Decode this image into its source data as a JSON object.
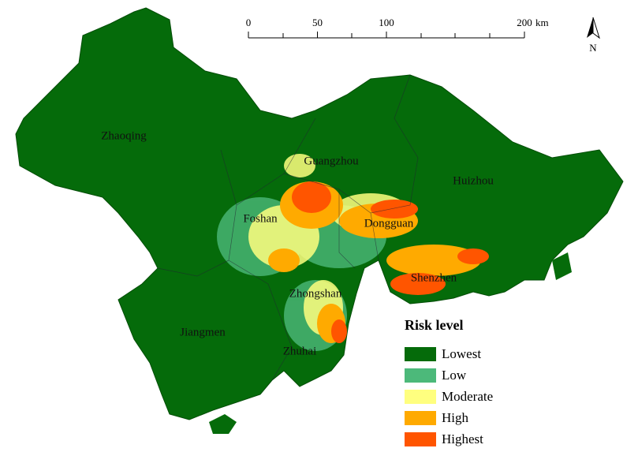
{
  "cities": [
    "Zhaoqing",
    "Guangzhou",
    "Huizhou",
    "Foshan",
    "Dongguan",
    "Shenzhen",
    "Zhongshan",
    "Jiangmen",
    "Zhuhai"
  ],
  "scale_bar": {
    "ticks": [
      0,
      50,
      100,
      200
    ],
    "unit": "km"
  },
  "north_arrow": "N",
  "legend": {
    "title": "Risk level",
    "items": [
      {
        "label": "Lowest",
        "color": "#056b0a"
      },
      {
        "label": "Low",
        "color": "#4cb97a"
      },
      {
        "label": "Moderate",
        "color": "#ffff7f"
      },
      {
        "label": "High",
        "color": "#ffaa00"
      },
      {
        "label": "Highest",
        "color": "#ff5500"
      }
    ]
  }
}
